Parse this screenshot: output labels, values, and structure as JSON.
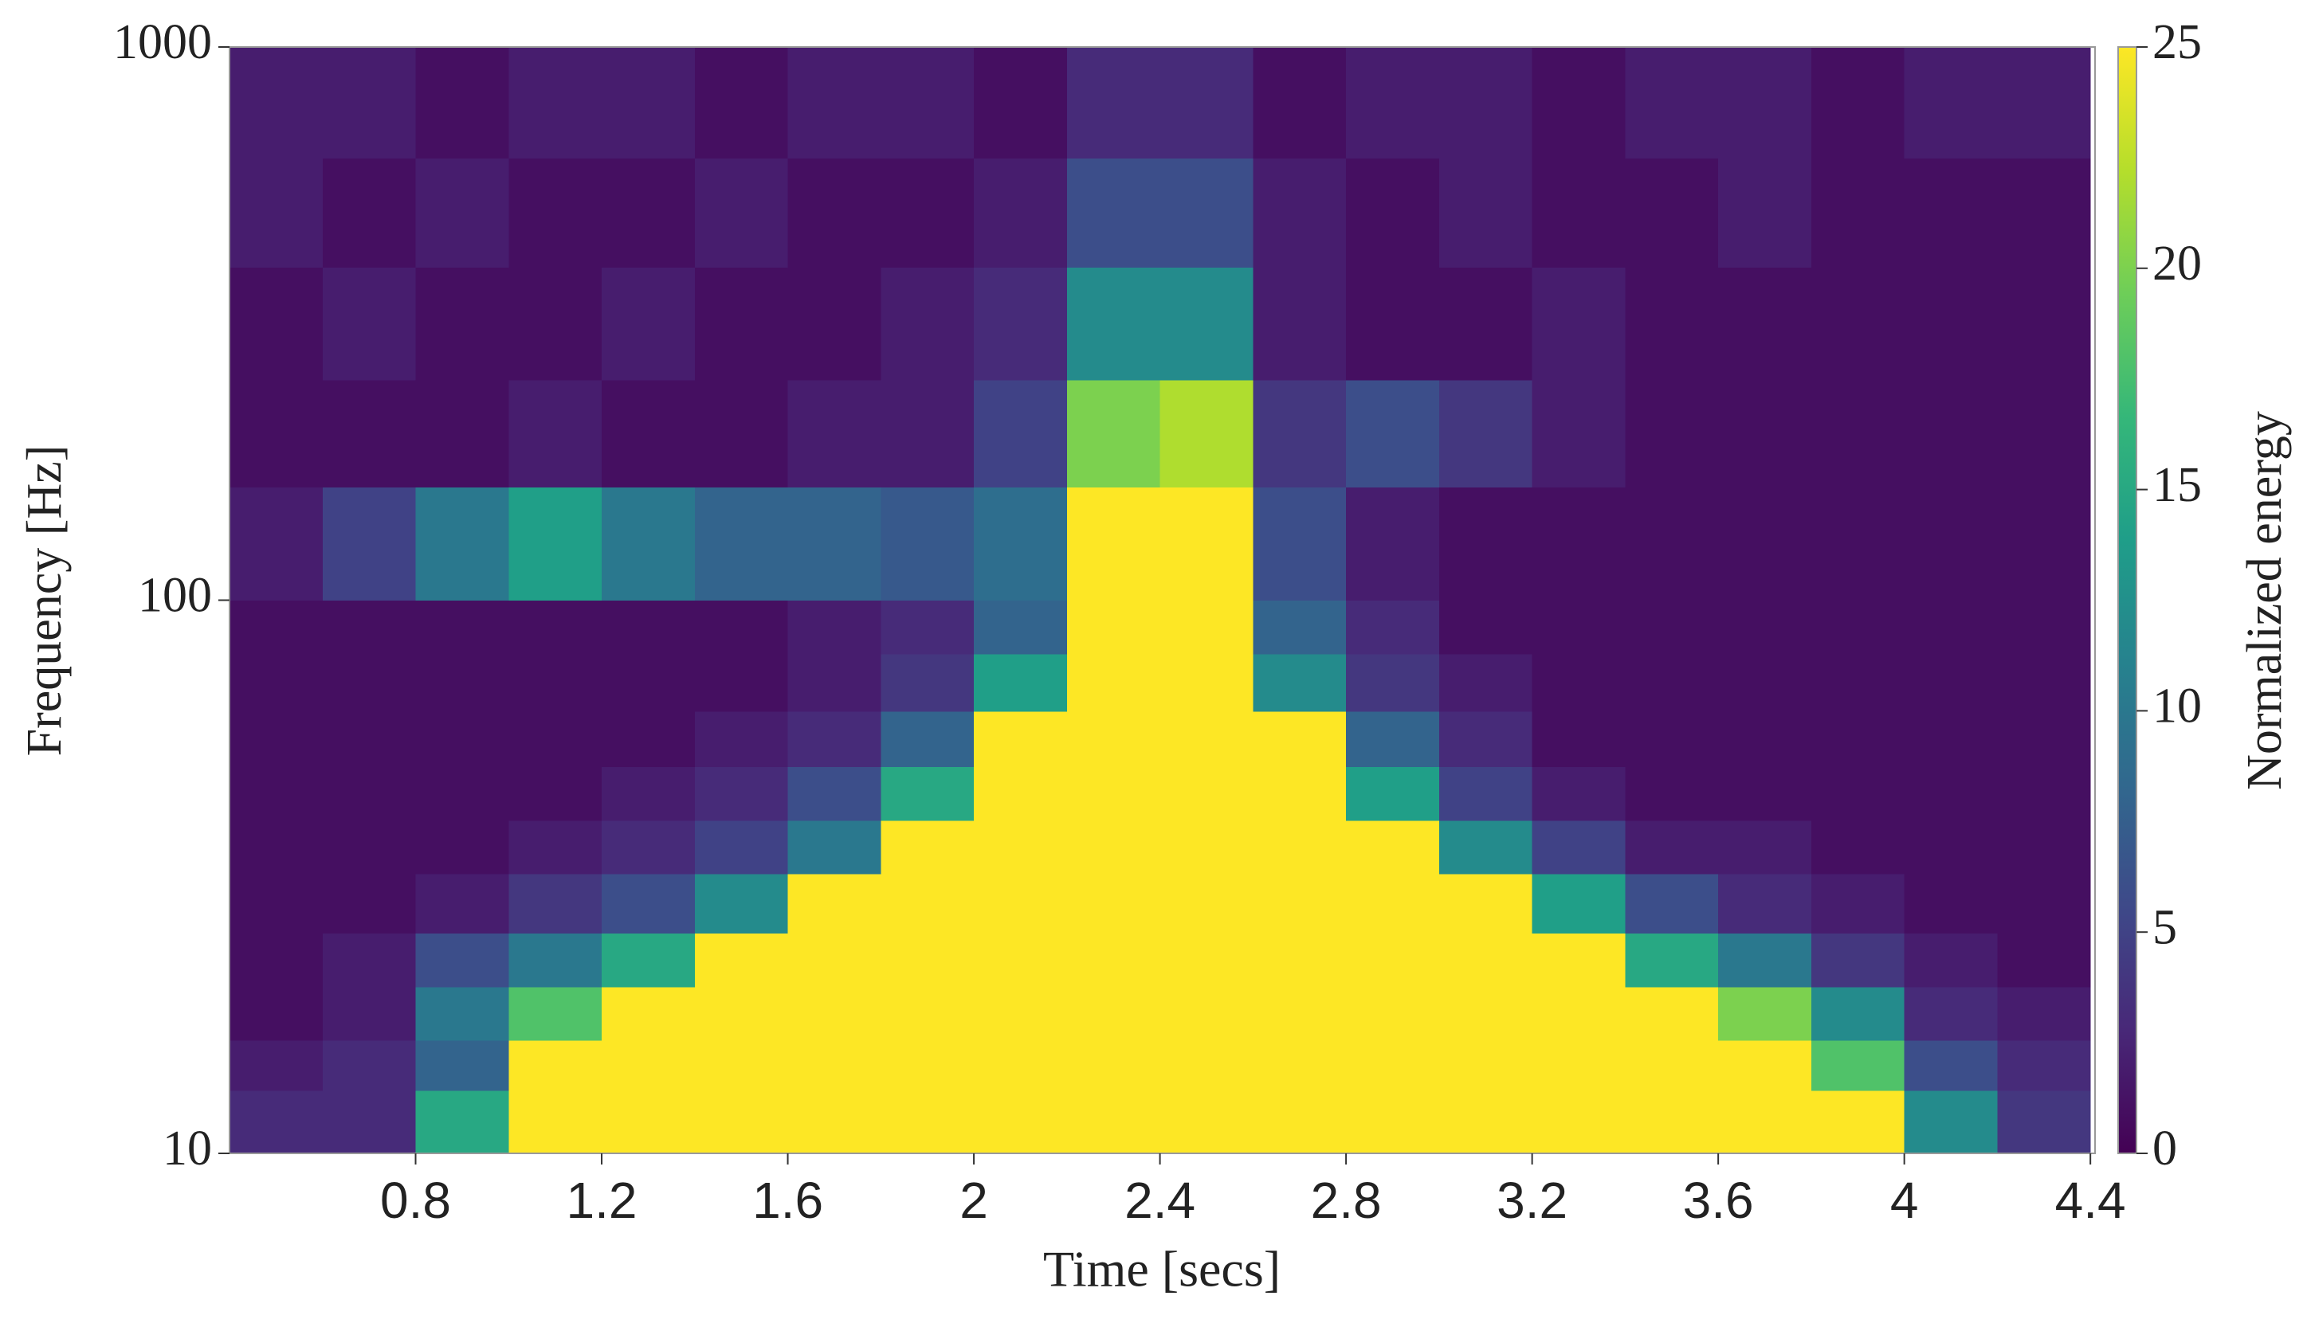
{
  "chart_data": {
    "type": "heatmap",
    "xlabel": "Time [secs]",
    "ylabel": "Frequency [Hz]",
    "xlim": [
      0.4,
      4.41
    ],
    "xticks": [
      0.8,
      1.2,
      1.6,
      2,
      2.4,
      2.8,
      3.2,
      3.6,
      4,
      4.4
    ],
    "ylim": [
      10,
      1000
    ],
    "yticks": [
      10,
      100,
      1000
    ],
    "ylog": true,
    "x_edges": [
      0.4,
      0.6,
      0.8,
      1.0,
      1.2,
      1.4,
      1.6,
      1.8,
      2.0,
      2.2,
      2.4,
      2.6,
      2.8,
      3.0,
      3.2,
      3.4,
      3.6,
      3.8,
      4.0,
      4.2,
      4.4
    ],
    "y_edges": [
      10,
      13,
      16,
      20,
      25,
      32,
      40,
      50,
      63,
      80,
      100,
      160,
      250,
      400,
      630,
      1000
    ],
    "z": [
      [
        3,
        3,
        15,
        25,
        25,
        25,
        25,
        25,
        25,
        25,
        25,
        25,
        25,
        25,
        25,
        25,
        25,
        25,
        12,
        4
      ],
      [
        2,
        3,
        8,
        25,
        25,
        25,
        25,
        25,
        25,
        25,
        25,
        25,
        25,
        25,
        25,
        25,
        25,
        18,
        6,
        3
      ],
      [
        1,
        2,
        10,
        18,
        25,
        25,
        25,
        25,
        25,
        25,
        25,
        25,
        25,
        25,
        25,
        25,
        20,
        12,
        3,
        2
      ],
      [
        1,
        2,
        6,
        10,
        15,
        25,
        25,
        25,
        25,
        25,
        25,
        25,
        25,
        25,
        25,
        15,
        10,
        4,
        2,
        1
      ],
      [
        1,
        1,
        2,
        4,
        6,
        12,
        25,
        25,
        25,
        25,
        25,
        25,
        25,
        25,
        14,
        6,
        3,
        2,
        1,
        1
      ],
      [
        1,
        1,
        1,
        2,
        3,
        5,
        10,
        25,
        25,
        25,
        25,
        25,
        25,
        12,
        5,
        2,
        2,
        1,
        1,
        1
      ],
      [
        1,
        1,
        1,
        1,
        2,
        3,
        6,
        15,
        25,
        25,
        25,
        25,
        14,
        5,
        2,
        1,
        1,
        1,
        1,
        1
      ],
      [
        1,
        1,
        1,
        1,
        1,
        2,
        3,
        8,
        25,
        25,
        25,
        25,
        8,
        3,
        1,
        1,
        1,
        1,
        1,
        1
      ],
      [
        1,
        1,
        1,
        1,
        1,
        1,
        2,
        4,
        14,
        25,
        25,
        12,
        4,
        2,
        1,
        1,
        1,
        1,
        1,
        1
      ],
      [
        1,
        1,
        1,
        1,
        1,
        1,
        2,
        3,
        8,
        25,
        25,
        8,
        3,
        1,
        1,
        1,
        1,
        1,
        1,
        1
      ],
      [
        2,
        5,
        10,
        14,
        10,
        8,
        8,
        7,
        9,
        25,
        25,
        6,
        2,
        1,
        1,
        1,
        1,
        1,
        1,
        1
      ],
      [
        1,
        1,
        1,
        2,
        1,
        1,
        2,
        2,
        5,
        20,
        22,
        4,
        6,
        4,
        2,
        1,
        1,
        1,
        1,
        1
      ],
      [
        1,
        2,
        1,
        1,
        2,
        1,
        1,
        2,
        3,
        12,
        12,
        2,
        1,
        1,
        2,
        1,
        1,
        1,
        1,
        1
      ],
      [
        2,
        1,
        2,
        1,
        1,
        2,
        1,
        1,
        2,
        6,
        6,
        2,
        1,
        2,
        1,
        1,
        2,
        1,
        1,
        1
      ],
      [
        2,
        2,
        1,
        2,
        2,
        1,
        2,
        2,
        1,
        3,
        3,
        1,
        2,
        2,
        1,
        2,
        2,
        1,
        2,
        2
      ]
    ],
    "colorbar": {
      "label": "Normalized energy",
      "lim": [
        0,
        25
      ],
      "ticks": [
        0,
        5,
        10,
        15,
        20,
        25
      ],
      "colors": [
        "#440154",
        "#482878",
        "#3e4989",
        "#31688e",
        "#26828e",
        "#1f9e89",
        "#35b779",
        "#6ece58",
        "#b5de2b",
        "#fde725"
      ]
    }
  }
}
